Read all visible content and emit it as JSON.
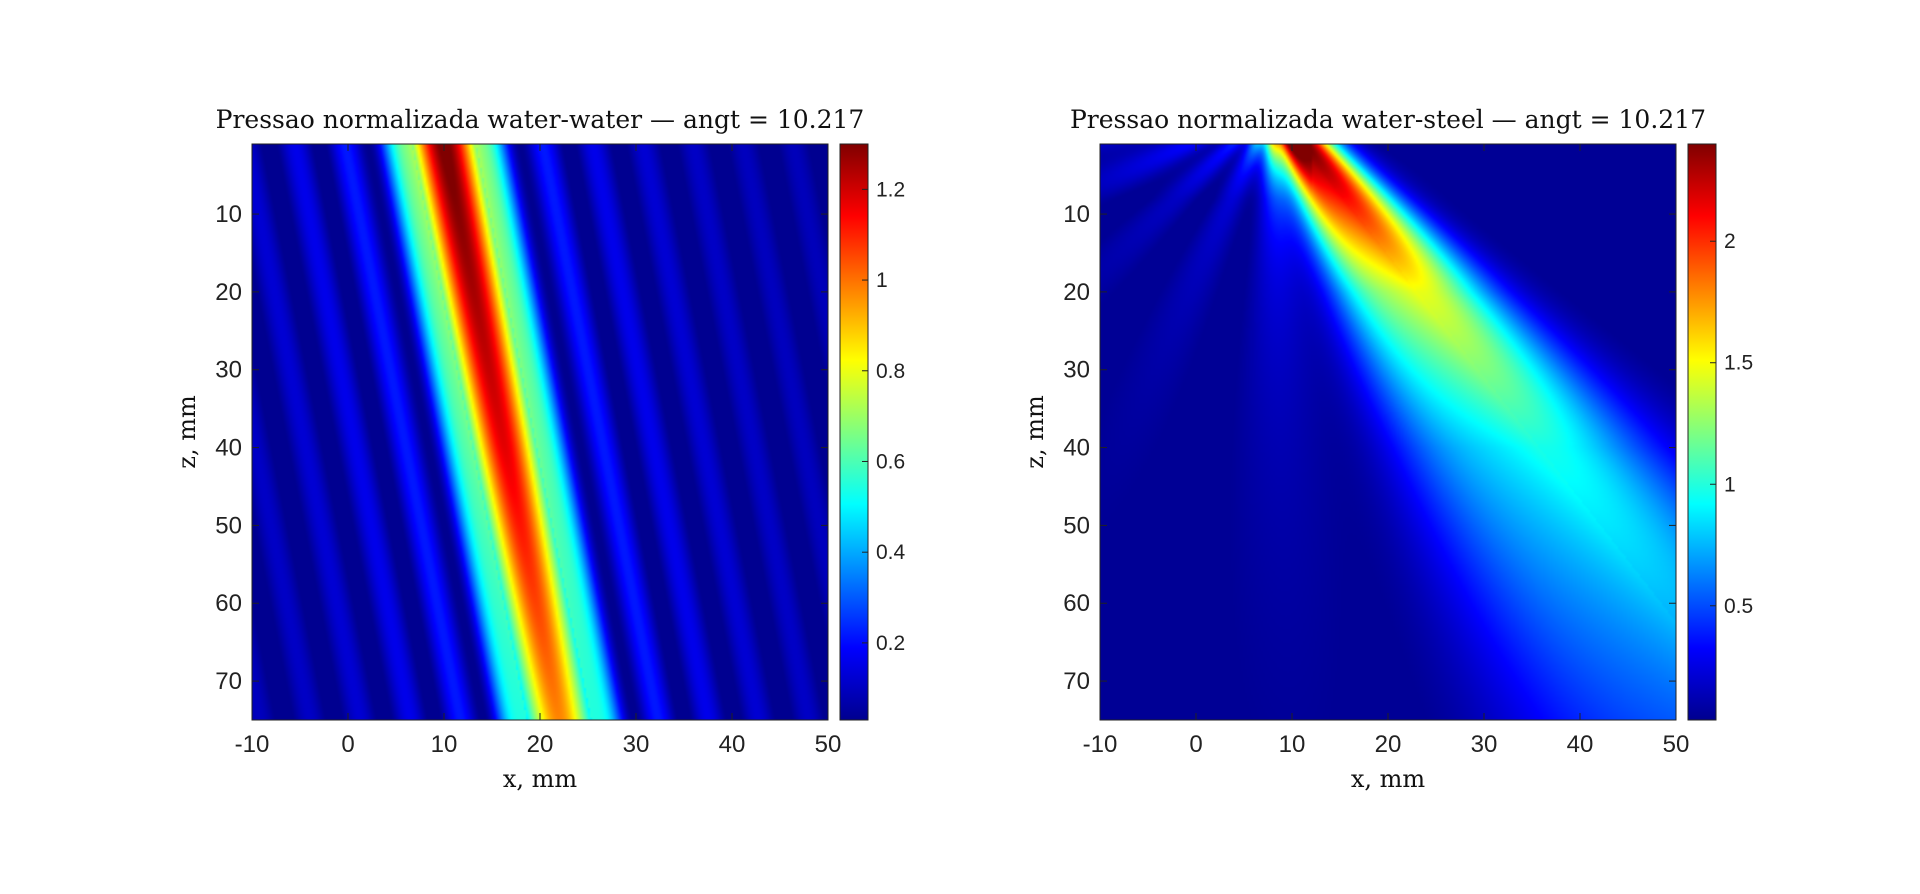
{
  "chart_data": [
    {
      "type": "heatmap",
      "title": "Pressao normalizada water-water — angt = 10.217",
      "xlabel": "x, mm",
      "ylabel": "z, mm",
      "xlim": [
        -10,
        50
      ],
      "ylim": [
        75,
        1
      ],
      "x_ticks": [
        -10,
        0,
        10,
        20,
        30,
        40,
        50
      ],
      "y_ticks": [
        10,
        20,
        30,
        40,
        50,
        60,
        70
      ],
      "colormap": "jet",
      "colorbar": {
        "range": [
          0.03,
          1.3
        ],
        "ticks": [
          0.2,
          0.4,
          0.6,
          0.8,
          1,
          1.2
        ],
        "tick_labels": [
          "0.2",
          "0.4",
          "0.6",
          "0.8",
          "1",
          "1.2"
        ]
      },
      "field": {
        "description": "narrow main beam leaving the surface at x≈10 mm and drifting to x≈22 mm at z=75 mm, with weak parallel side lobes",
        "beam_center_at_z": [
          [
            1,
            10
          ],
          [
            75,
            22
          ]
        ],
        "peak_value_at_z": [
          [
            1,
            1.3
          ],
          [
            40,
            1.15
          ],
          [
            75,
            0.95
          ]
        ],
        "beam_halfwidth_mm": 2.8,
        "side_lobe_spacing_mm": 5.2,
        "background": 0.05
      }
    },
    {
      "type": "heatmap",
      "title": "Pressao normalizada water-steel — angt = 10.217",
      "xlabel": "x, mm",
      "ylabel": "z, mm",
      "xlim": [
        -10,
        50
      ],
      "ylim": [
        75,
        1
      ],
      "x_ticks": [
        -10,
        0,
        10,
        20,
        30,
        40,
        50
      ],
      "y_ticks": [
        10,
        20,
        30,
        40,
        50,
        60,
        70
      ],
      "colormap": "jet",
      "colorbar": {
        "range": [
          0.03,
          2.4
        ],
        "ticks": [
          0.5,
          1,
          1.5,
          2
        ],
        "tick_labels": [
          "0.5",
          "1",
          "1.5",
          "2"
        ]
      },
      "field": {
        "description": "refracted beam leaving the surface at x≈11 mm and spreading steeply to x≈58 mm at z=75 mm, decaying with depth, with faint fan-shaped side lobes",
        "beam_center_at_z": [
          [
            1,
            11
          ],
          [
            75,
            58
          ]
        ],
        "peak_value_at_z": [
          [
            1,
            2.4
          ],
          [
            20,
            1.4
          ],
          [
            40,
            0.9
          ],
          [
            75,
            0.55
          ]
        ],
        "beam_halfwidth_mm": [
          [
            1,
            2.5
          ],
          [
            75,
            14
          ]
        ],
        "background": 0.08
      }
    }
  ]
}
